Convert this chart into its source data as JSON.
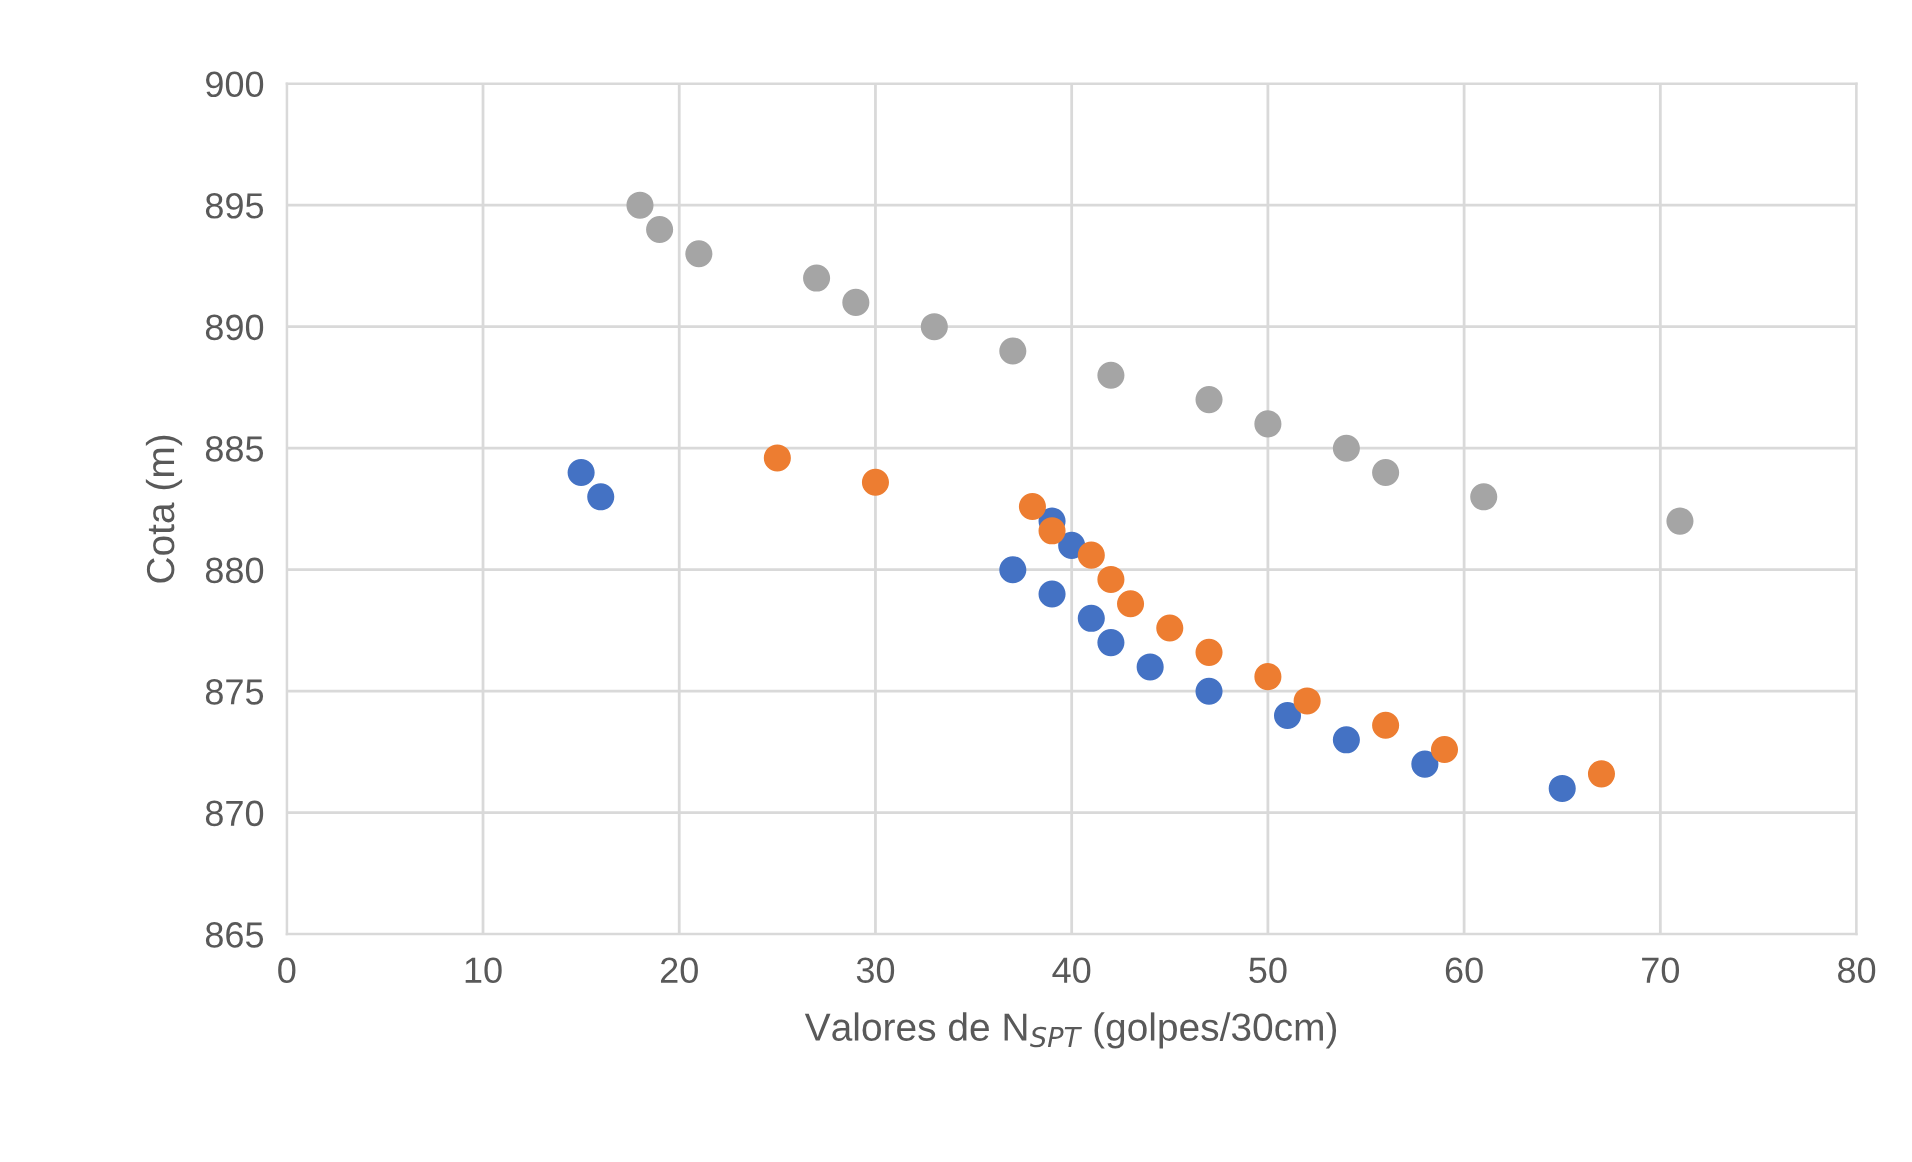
{
  "chart_data": {
    "type": "scatter",
    "xlabel": "Valores de N$_{SPT}$ (golpes/30cm)",
    "ylabel": "Cota (m)",
    "xlim": [
      0,
      80
    ],
    "xticks": [
      0,
      10,
      20,
      30,
      40,
      50,
      60,
      70,
      80
    ],
    "ylim": [
      865,
      900
    ],
    "yticks": [
      865,
      870,
      875,
      880,
      885,
      890,
      895,
      900
    ],
    "grid": true,
    "marker": "circle",
    "series": [
      {
        "color": "#4472c4",
        "x": [
          15,
          16,
          39,
          40,
          37,
          39,
          41,
          42,
          44,
          47,
          51,
          54,
          58,
          65
        ],
        "values": [
          884,
          883,
          882,
          881,
          880,
          879,
          878,
          877,
          876,
          875,
          874,
          873,
          872,
          871
        ]
      },
      {
        "color": "#ed7d31",
        "x": [
          25,
          30,
          38,
          39,
          41,
          42,
          43,
          45,
          47,
          50,
          52,
          56,
          59,
          67
        ],
        "values": [
          884.6,
          883.6,
          882.6,
          881.6,
          880.6,
          879.6,
          878.6,
          877.6,
          876.6,
          875.6,
          874.6,
          873.6,
          872.6,
          871.6
        ]
      },
      {
        "color": "#a5a5a5",
        "x": [
          18,
          19,
          21,
          27,
          29,
          33,
          37,
          42,
          47,
          50,
          54,
          56,
          61,
          71
        ],
        "values": [
          895,
          894,
          893,
          892,
          891,
          890,
          889,
          888,
          887,
          886,
          885,
          884,
          883,
          882
        ]
      }
    ]
  }
}
